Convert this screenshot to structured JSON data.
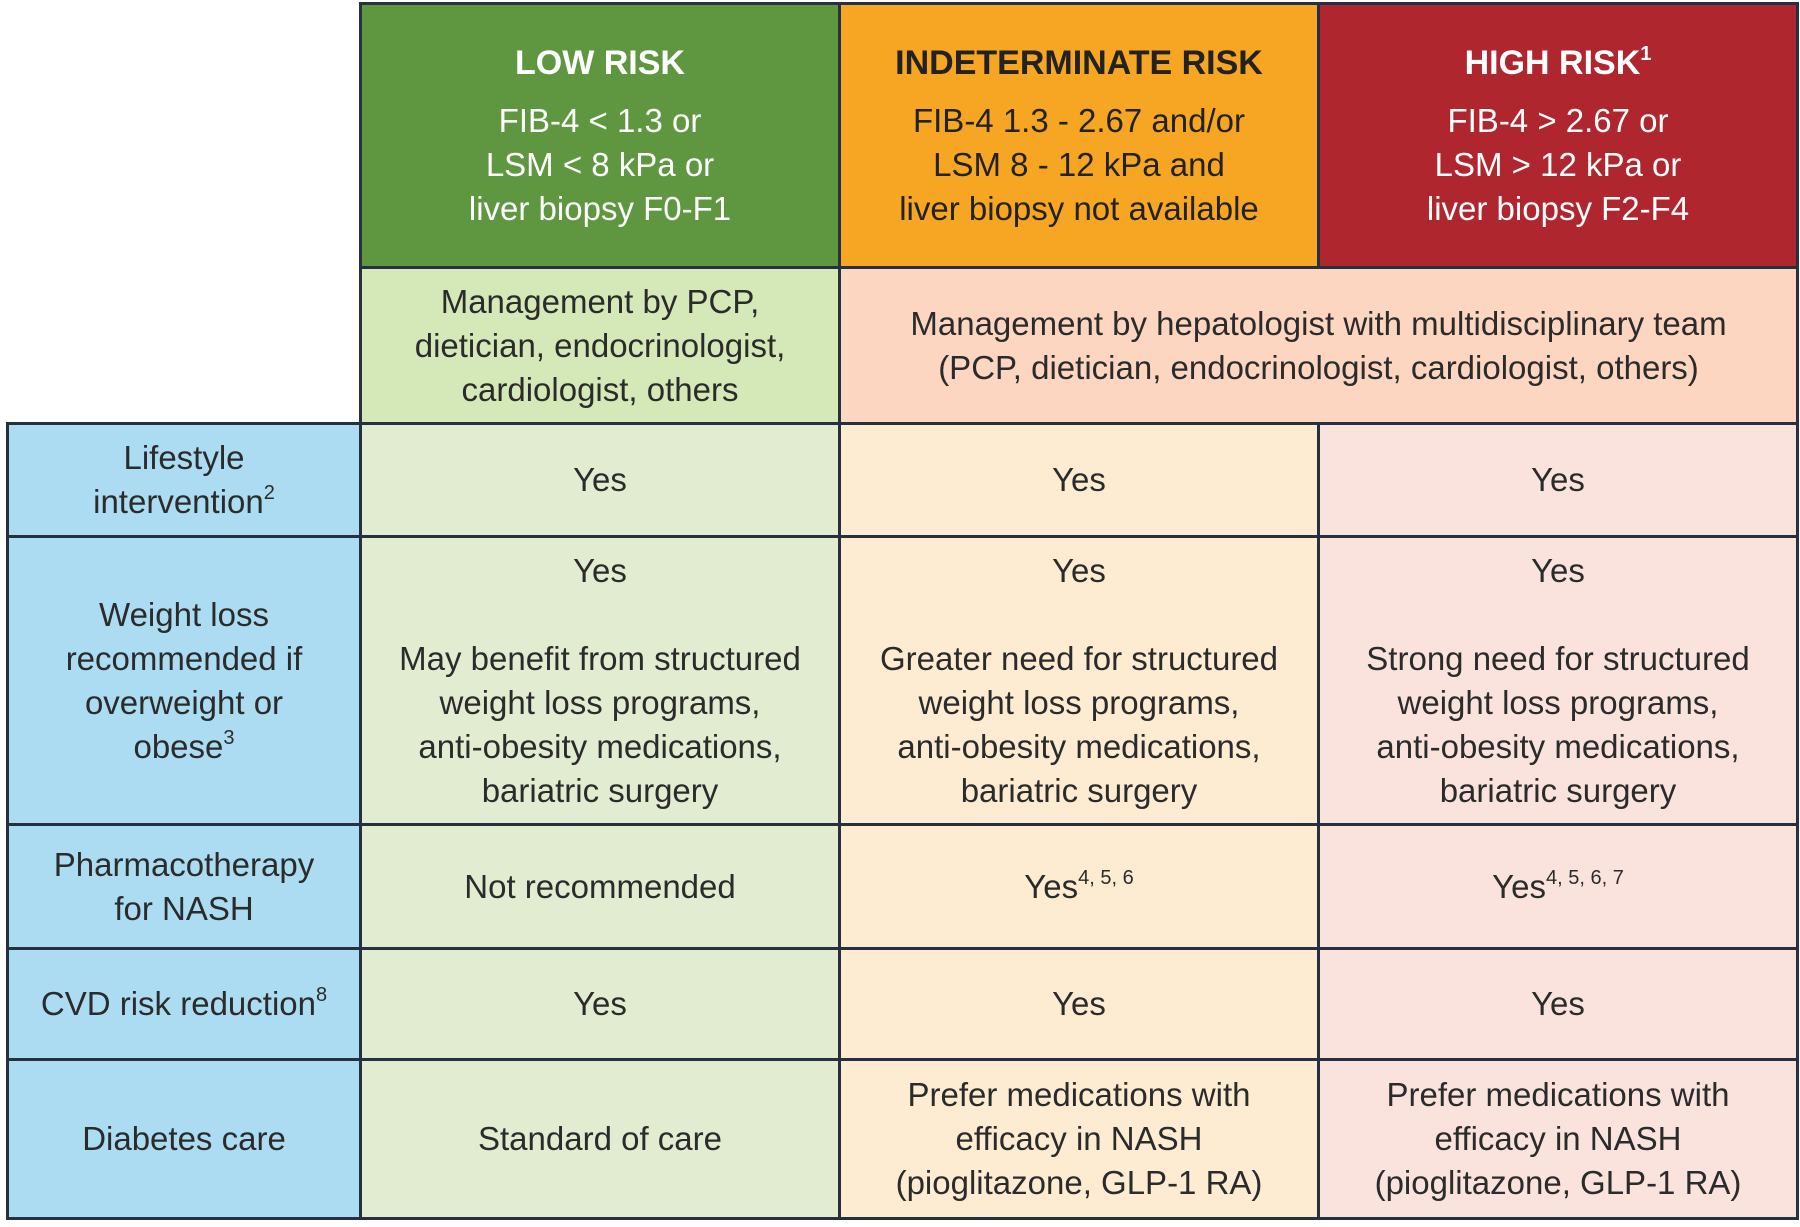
{
  "header": {
    "columns": [
      {
        "title": "LOW RISK",
        "criteria": [
          "FIB-4 < 1.3 or",
          "LSM < 8 kPa or",
          "liver biopsy F0-F1"
        ]
      },
      {
        "title": "INDETERMINATE RISK",
        "criteria": [
          "FIB-4 1.3 - 2.67 and/or",
          "LSM 8 - 12 kPa and",
          "liver biopsy not available"
        ]
      },
      {
        "title": "HIGH RISK",
        "title_sup": "1",
        "criteria": [
          "FIB-4 > 2.67 or",
          "LSM > 12 kPa or",
          "liver biopsy F2-F4"
        ]
      }
    ]
  },
  "management": [
    {
      "lines": [
        "Management by PCP,",
        "dietician, endocrinologist,",
        "cardiologist, others"
      ]
    },
    {
      "lines": [
        "Management by hepatologist with multidisciplinary team",
        "(PCP, dietician, endocrinologist, cardiologist, others)"
      ]
    }
  ],
  "rows": [
    {
      "label": [
        "Lifestyle",
        "intervention"
      ],
      "label_sup": "2",
      "cells": [
        {
          "lines": [
            "Yes"
          ]
        },
        {
          "lines": [
            "Yes"
          ]
        },
        {
          "lines": [
            "Yes"
          ]
        }
      ]
    },
    {
      "label": [
        "Weight loss",
        "recommended if",
        "overweight or",
        "obese"
      ],
      "label_sup": "3",
      "cells": [
        {
          "top": "Yes",
          "lines": [
            "May benefit from structured",
            "weight loss programs,",
            "anti-obesity medications,",
            "bariatric surgery"
          ]
        },
        {
          "top": "Yes",
          "lines": [
            "Greater need for structured",
            "weight loss programs,",
            "anti-obesity medications,",
            "bariatric surgery"
          ]
        },
        {
          "top": "Yes",
          "lines": [
            "Strong need for structured",
            "weight loss programs,",
            "anti-obesity medications,",
            "bariatric surgery"
          ]
        }
      ]
    },
    {
      "label": [
        "Pharmacotherapy",
        "for NASH"
      ],
      "cells": [
        {
          "lines": [
            "Not recommended"
          ]
        },
        {
          "lines": [
            "Yes"
          ],
          "sup": "4, 5, 6"
        },
        {
          "lines": [
            "Yes"
          ],
          "sup": "4, 5, 6, 7"
        }
      ]
    },
    {
      "label": [
        "CVD risk reduction"
      ],
      "label_sup": "8",
      "cells": [
        {
          "lines": [
            "Yes"
          ]
        },
        {
          "lines": [
            "Yes"
          ]
        },
        {
          "lines": [
            "Yes"
          ]
        }
      ]
    },
    {
      "label": [
        "Diabetes care"
      ],
      "cells": [
        {
          "lines": [
            "Standard of care"
          ]
        },
        {
          "lines": [
            "Prefer medications with",
            "efficacy in NASH",
            "(pioglitazone, GLP-1 RA)"
          ]
        },
        {
          "lines": [
            "Prefer medications with",
            "efficacy in NASH",
            "(pioglitazone, GLP-1 RA)"
          ]
        }
      ]
    }
  ]
}
